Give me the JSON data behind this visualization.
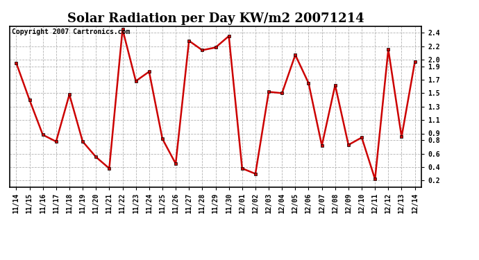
{
  "title": "Solar Radiation per Day KW/m2 20071214",
  "copyright": "Copyright 2007 Cartronics.com",
  "dates": [
    "11/14",
    "11/15",
    "11/16",
    "11/17",
    "11/18",
    "11/19",
    "11/20",
    "11/21",
    "11/22",
    "11/23",
    "11/24",
    "11/25",
    "11/26",
    "11/27",
    "11/28",
    "11/29",
    "11/30",
    "12/01",
    "12/02",
    "12/03",
    "12/04",
    "12/05",
    "12/06",
    "12/07",
    "12/08",
    "12/09",
    "12/10",
    "12/11",
    "12/12",
    "12/13",
    "12/14"
  ],
  "values": [
    1.95,
    1.4,
    0.88,
    0.78,
    1.48,
    0.78,
    0.55,
    0.38,
    2.45,
    1.68,
    1.82,
    0.82,
    0.45,
    2.28,
    2.14,
    2.18,
    2.35,
    0.38,
    0.3,
    1.52,
    1.5,
    2.07,
    1.65,
    0.72,
    1.62,
    0.73,
    0.84,
    0.22,
    2.15,
    0.85,
    1.97
  ],
  "line_color": "#cc0000",
  "marker": "s",
  "marker_size": 3,
  "line_width": 1.8,
  "ylim": [
    0.1,
    2.5
  ],
  "yticks": [
    0.2,
    0.4,
    0.6,
    0.8,
    0.9,
    1.1,
    1.3,
    1.5,
    1.7,
    1.9,
    2.0,
    2.2,
    2.4
  ],
  "bg_color": "#ffffff",
  "grid_color": "#aaaaaa",
  "title_fontsize": 13,
  "tick_fontsize": 7,
  "copyright_fontsize": 7
}
